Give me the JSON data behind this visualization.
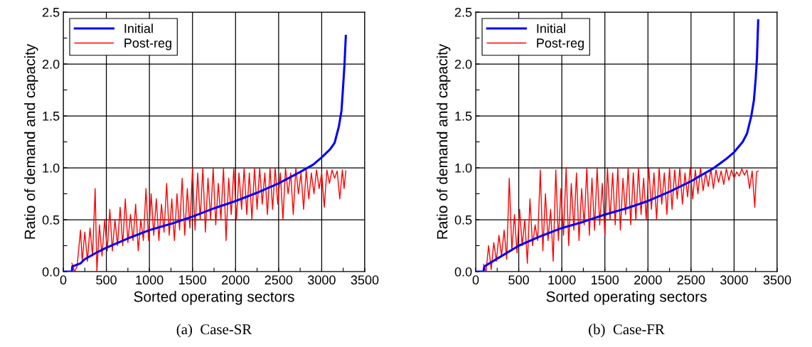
{
  "chart_data": [
    {
      "type": "line",
      "xlabel": "Sorted operating sectors",
      "ylabel": "Ratio of demand and capacity",
      "annotations": [
        "(a)  Case-SR"
      ],
      "xlim": [
        0,
        3500
      ],
      "xticks": [
        0,
        {
          "value": 250,
          "label": null
        },
        500,
        {
          "value": 750,
          "label": null
        },
        1000,
        {
          "value": 1250,
          "label": null
        },
        1500,
        {
          "value": 1750,
          "label": null
        },
        2000,
        {
          "value": 2250,
          "label": null
        },
        2500,
        {
          "value": 2750,
          "label": null
        },
        3000,
        {
          "value": 3250,
          "label": null
        },
        3500
      ],
      "ylim": [
        0,
        2.5
      ],
      "yticks": [
        {
          "value": 0,
          "label": "0.0"
        },
        {
          "value": 0.25,
          "label": null
        },
        0.5,
        {
          "value": 0.75,
          "label": null
        },
        {
          "value": 1,
          "label": "1.0"
        },
        {
          "value": 1.25,
          "label": null
        },
        1.5,
        {
          "value": 1.75,
          "label": null
        },
        {
          "value": 2,
          "label": "2.0"
        },
        {
          "value": 2.25,
          "label": null
        },
        2.5
      ],
      "grid": true,
      "legend": "top left",
      "series": [
        {
          "name": "Initial",
          "color": "#0000ff",
          "x": [
            0,
            100,
            105,
            200,
            250,
            400,
            500,
            750,
            1000,
            1250,
            1500,
            1750,
            2000,
            2250,
            2500,
            2750,
            2900,
            3000,
            3100,
            3150,
            3200,
            3230,
            3250,
            3265,
            3280
          ],
          "values": [
            0,
            0,
            0.05,
            0.08,
            0.12,
            0.19,
            0.23,
            0.32,
            0.4,
            0.46,
            0.53,
            0.61,
            0.68,
            0.76,
            0.85,
            0.96,
            1.03,
            1.1,
            1.18,
            1.24,
            1.4,
            1.55,
            1.8,
            2.0,
            2.27
          ]
        },
        {
          "name": "Post-reg",
          "color": "#ff0000",
          "x": [
            100,
            130,
            160,
            200,
            220,
            250,
            280,
            310,
            340,
            370,
            390,
            420,
            450,
            480,
            510,
            540,
            570,
            600,
            630,
            660,
            690,
            720,
            750,
            780,
            810,
            840,
            870,
            900,
            930,
            960,
            990,
            1020,
            1050,
            1080,
            1110,
            1140,
            1170,
            1200,
            1230,
            1260,
            1290,
            1320,
            1350,
            1380,
            1410,
            1440,
            1470,
            1500,
            1530,
            1560,
            1590,
            1620,
            1650,
            1680,
            1710,
            1740,
            1770,
            1800,
            1830,
            1860,
            1890,
            1920,
            1950,
            1980,
            2010,
            2040,
            2070,
            2100,
            2130,
            2160,
            2190,
            2220,
            2250,
            2280,
            2310,
            2340,
            2370,
            2400,
            2430,
            2460,
            2490,
            2520,
            2550,
            2580,
            2610,
            2640,
            2670,
            2700,
            2730,
            2760,
            2790,
            2820,
            2850,
            2880,
            2910,
            2940,
            2970,
            3000,
            3030,
            3060,
            3090,
            3120,
            3150,
            3180,
            3210,
            3240,
            3260,
            3280
          ],
          "values": [
            0.08,
            0.0,
            0.05,
            0.4,
            0.1,
            0.38,
            0.1,
            0.42,
            0.15,
            0.8,
            0.0,
            0.45,
            0.15,
            0.5,
            0.2,
            0.6,
            0.2,
            0.5,
            0.25,
            0.62,
            0.25,
            0.7,
            0.28,
            0.55,
            0.3,
            0.65,
            0.2,
            0.5,
            0.3,
            0.8,
            0.3,
            0.75,
            0.35,
            0.7,
            0.3,
            0.65,
            0.38,
            0.85,
            0.35,
            0.7,
            0.3,
            0.75,
            0.4,
            0.9,
            0.35,
            0.8,
            0.42,
            1.0,
            0.4,
            0.95,
            0.5,
            1.0,
            0.38,
            0.9,
            0.5,
            1.0,
            0.45,
            0.85,
            0.5,
            1.0,
            0.3,
            0.9,
            0.55,
            1.0,
            0.5,
            0.95,
            0.6,
            1.0,
            0.55,
            0.95,
            0.5,
            1.0,
            0.6,
            1.0,
            0.65,
            0.95,
            0.55,
            1.0,
            0.6,
            1.0,
            0.65,
            0.95,
            0.5,
            1.0,
            0.75,
            0.95,
            0.55,
            1.0,
            0.75,
            0.95,
            0.6,
            0.98,
            0.7,
            0.95,
            0.75,
            0.98,
            0.8,
            0.95,
            0.62,
            0.98,
            0.85,
            0.98,
            0.9,
            0.97,
            0.7,
            0.98,
            0.8,
            0.97
          ]
        }
      ]
    },
    {
      "type": "line",
      "xlabel": "Sorted operating sectors",
      "ylabel": "Ratio of demand and capacity",
      "annotations": [
        "(b)  Case-FR"
      ],
      "xlim": [
        0,
        3500
      ],
      "xticks": [
        0,
        {
          "value": 250,
          "label": null
        },
        500,
        {
          "value": 750,
          "label": null
        },
        1000,
        {
          "value": 1250,
          "label": null
        },
        1500,
        {
          "value": 1750,
          "label": null
        },
        2000,
        {
          "value": 2250,
          "label": null
        },
        2500,
        {
          "value": 2750,
          "label": null
        },
        3000,
        {
          "value": 3250,
          "label": null
        },
        3500
      ],
      "ylim": [
        0,
        2.5
      ],
      "yticks": [
        {
          "value": 0,
          "label": "0.0"
        },
        {
          "value": 0.25,
          "label": null
        },
        0.5,
        {
          "value": 0.75,
          "label": null
        },
        {
          "value": 1,
          "label": "1.0"
        },
        {
          "value": 1.25,
          "label": null
        },
        1.5,
        {
          "value": 1.75,
          "label": null
        },
        {
          "value": 2,
          "label": "2.0"
        },
        {
          "value": 2.25,
          "label": null
        },
        2.5
      ],
      "grid": true,
      "legend": "top left",
      "series": [
        {
          "name": "Initial",
          "color": "#0000ff",
          "x": [
            0,
            90,
            100,
            200,
            300,
            500,
            750,
            1000,
            1250,
            1500,
            1750,
            2000,
            2250,
            2500,
            2600,
            2750,
            2900,
            3000,
            3100,
            3150,
            3200,
            3230,
            3250,
            3265,
            3280
          ],
          "values": [
            0,
            0,
            0.05,
            0.1,
            0.15,
            0.25,
            0.34,
            0.42,
            0.48,
            0.55,
            0.61,
            0.68,
            0.77,
            0.87,
            0.92,
            0.99,
            1.08,
            1.15,
            1.25,
            1.33,
            1.5,
            1.65,
            1.85,
            2.05,
            2.42
          ]
        },
        {
          "name": "Post-reg",
          "color": "#ff0000",
          "x": [
            90,
            120,
            150,
            180,
            210,
            240,
            270,
            300,
            330,
            360,
            390,
            420,
            450,
            480,
            510,
            540,
            570,
            600,
            630,
            660,
            690,
            720,
            750,
            780,
            810,
            840,
            870,
            900,
            930,
            960,
            990,
            1020,
            1050,
            1080,
            1110,
            1140,
            1170,
            1200,
            1230,
            1260,
            1290,
            1320,
            1350,
            1380,
            1410,
            1440,
            1470,
            1500,
            1530,
            1560,
            1590,
            1620,
            1650,
            1680,
            1710,
            1740,
            1770,
            1800,
            1830,
            1860,
            1890,
            1920,
            1950,
            1980,
            2010,
            2040,
            2070,
            2100,
            2130,
            2160,
            2190,
            2220,
            2250,
            2280,
            2310,
            2340,
            2370,
            2400,
            2430,
            2460,
            2490,
            2520,
            2550,
            2580,
            2610,
            2640,
            2670,
            2700,
            2730,
            2760,
            2790,
            2820,
            2850,
            2880,
            2910,
            2940,
            2970,
            3000,
            3030,
            3060,
            3090,
            3120,
            3150,
            3180,
            3210,
            3240,
            3260,
            3280
          ],
          "values": [
            0.07,
            0.0,
            0.25,
            0.02,
            0.28,
            0.1,
            0.35,
            0.15,
            0.4,
            0.12,
            0.9,
            0.2,
            0.55,
            0.18,
            0.6,
            0.25,
            0.5,
            0.08,
            0.7,
            0.25,
            0.45,
            0.3,
            0.98,
            0.2,
            0.75,
            0.3,
            0.6,
            0.1,
            0.98,
            0.3,
            0.8,
            0.35,
            1.0,
            0.25,
            0.85,
            0.4,
            0.95,
            0.3,
            0.8,
            0.45,
            1.0,
            0.35,
            0.9,
            0.4,
            1.0,
            0.45,
            0.85,
            0.35,
            1.0,
            0.5,
            0.95,
            0.45,
            1.0,
            0.4,
            0.9,
            0.55,
            1.0,
            0.45,
            0.95,
            0.5,
            1.0,
            0.55,
            0.9,
            0.5,
            1.0,
            0.6,
            0.95,
            0.5,
            1.0,
            0.65,
            0.95,
            0.55,
            1.0,
            0.6,
            0.98,
            0.7,
            1.0,
            0.65,
            0.95,
            0.72,
            1.0,
            0.7,
            0.98,
            0.75,
            1.0,
            0.78,
            0.95,
            0.82,
            0.99,
            0.8,
            0.98,
            0.86,
            0.97,
            0.84,
            0.99,
            0.88,
            0.98,
            0.9,
            0.96,
            0.92,
            0.99,
            0.93,
            0.98,
            0.8,
            0.97,
            0.62,
            0.96,
            0.97
          ]
        }
      ]
    }
  ]
}
